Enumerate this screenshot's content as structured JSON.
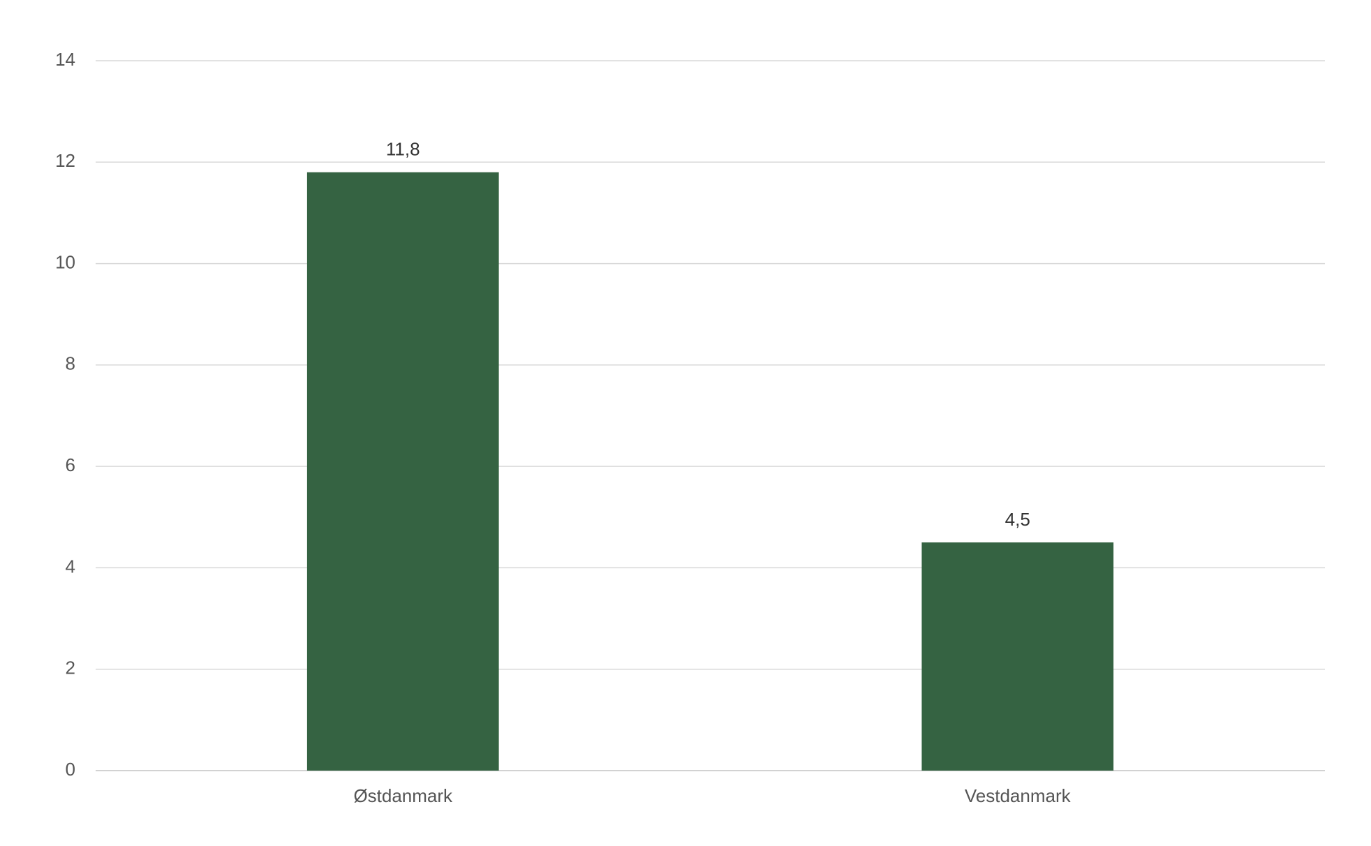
{
  "chart_data": {
    "type": "bar",
    "categories": [
      "Østdanmark",
      "Vestdanmark"
    ],
    "values": [
      11.8,
      4.5
    ],
    "value_labels": [
      "11,8",
      "4,5"
    ],
    "color": "#356342",
    "ylim": [
      0,
      14
    ],
    "yticks": [
      0,
      2,
      4,
      6,
      8,
      10,
      12,
      14
    ],
    "grid": true
  }
}
